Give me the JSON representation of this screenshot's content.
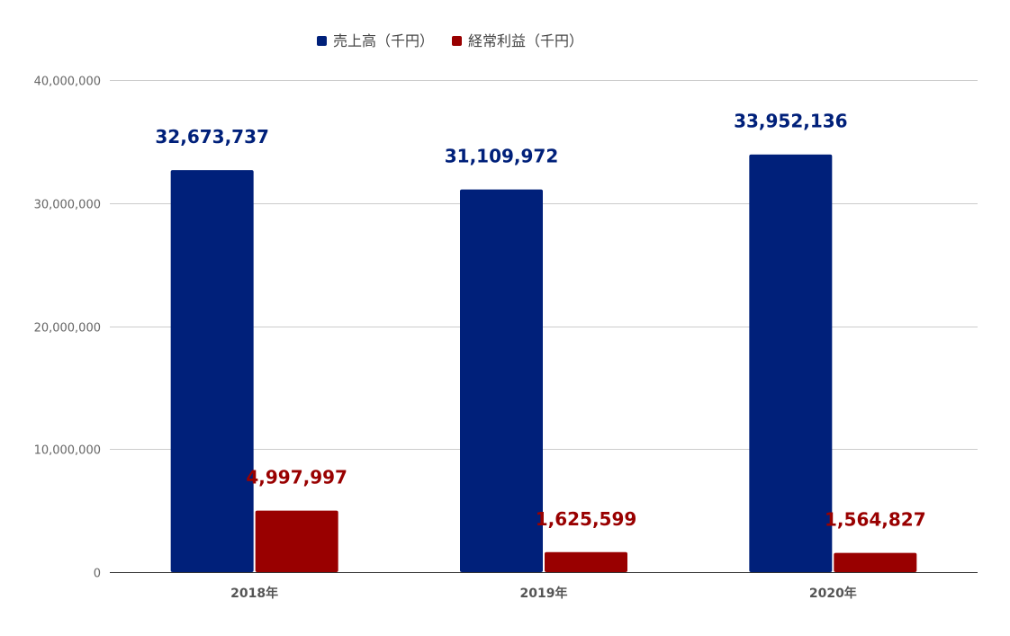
{
  "chart_data": {
    "type": "bar",
    "categories": [
      "2018年",
      "2019年",
      "2020年"
    ],
    "series": [
      {
        "name": "売上高（千円）",
        "color": "#00207a",
        "values": [
          32673737,
          31109972,
          33952136
        ],
        "labels": [
          "32,673,737",
          "31,109,972",
          "33,952,136"
        ]
      },
      {
        "name": "経常利益（千円）",
        "color": "#990000",
        "values": [
          4997997,
          1625599,
          1564827
        ],
        "labels": [
          "4,997,997",
          "1,625,599",
          "1,564,827"
        ]
      }
    ],
    "ylim": [
      0,
      40000000
    ],
    "yticks": [
      0,
      10000000,
      20000000,
      30000000,
      40000000
    ],
    "ytick_labels": [
      "0",
      "10,000,000",
      "20,000,000",
      "30,000,000",
      "40,000,000"
    ],
    "grid": true,
    "legend_position": "top",
    "gridline_color": "#cccccc",
    "axis_color": "#333333"
  }
}
